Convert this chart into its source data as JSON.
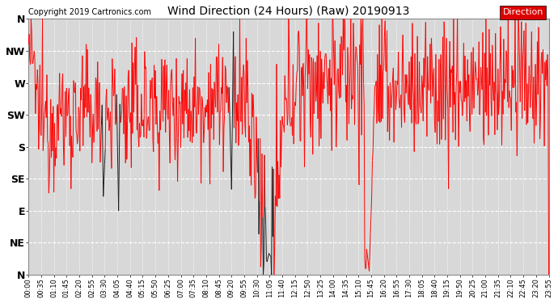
{
  "title": "Wind Direction (24 Hours) (Raw) 20190913",
  "copyright_text": "Copyright 2019 Cartronics.com",
  "background_color": "#ffffff",
  "plot_bg_color": "#d8d8d8",
  "grid_color": "#ffffff",
  "line_color_red": "#ff0000",
  "line_color_dark": "#1a1a1a",
  "legend_label": "Direction",
  "legend_bg": "#dd0000",
  "legend_text_color": "#ffffff",
  "ytick_labels": [
    "N",
    "NW",
    "W",
    "SW",
    "S",
    "SE",
    "E",
    "NE",
    "N"
  ],
  "ytick_values": [
    360,
    315,
    270,
    225,
    180,
    135,
    90,
    45,
    0
  ],
  "ylim": [
    0,
    360
  ],
  "xtick_labels": [
    "00:00",
    "00:35",
    "01:10",
    "01:45",
    "02:20",
    "02:55",
    "03:30",
    "04:05",
    "04:40",
    "05:15",
    "05:50",
    "06:25",
    "07:00",
    "07:35",
    "08:10",
    "08:45",
    "09:20",
    "09:55",
    "10:30",
    "11:05",
    "11:40",
    "12:15",
    "12:50",
    "13:25",
    "14:00",
    "14:35",
    "15:10",
    "15:45",
    "16:20",
    "16:55",
    "17:30",
    "18:05",
    "18:40",
    "19:15",
    "19:50",
    "20:25",
    "21:00",
    "21:35",
    "22:10",
    "22:45",
    "23:20",
    "23:55"
  ],
  "figsize": [
    6.9,
    3.75
  ],
  "dpi": 100
}
